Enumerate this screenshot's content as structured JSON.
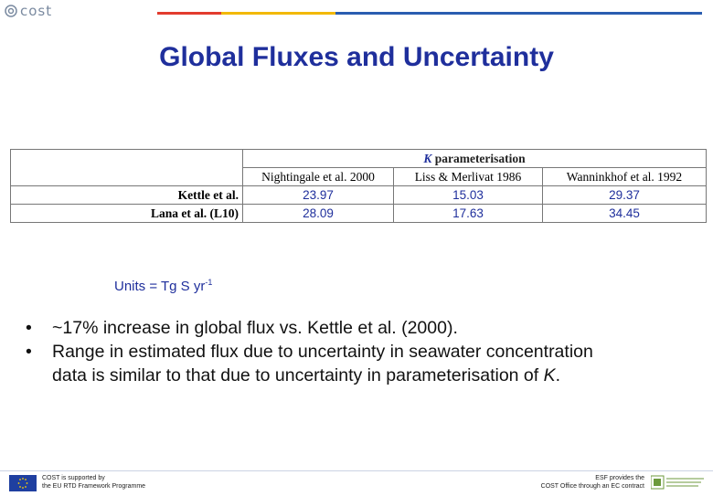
{
  "logo": {
    "text": "cost",
    "icon": "cost-logo-icon"
  },
  "header_bar_colors": [
    "#e23b2e",
    "#f2b800",
    "#2a5db0"
  ],
  "title": "Global Fluxes and Uncertainty",
  "table": {
    "k_header_symbol": "K",
    "k_header_text": " parameterisation",
    "columns": [
      "Nightingale et al. 2000",
      "Liss & Merlivat 1986",
      "Wanninkhof et al. 1992"
    ],
    "rows": [
      {
        "label": "Kettle et al.",
        "values": [
          "23.97",
          "15.03",
          "29.37"
        ]
      },
      {
        "label": "Lana et al. (L10)",
        "values": [
          "28.09",
          "17.63",
          "34.45"
        ]
      }
    ]
  },
  "units": {
    "prefix": "Units = Tg S yr",
    "exponent": "-1"
  },
  "bullets": [
    {
      "text": "~17% increase in global flux vs. Kettle et al. (2000)."
    },
    {
      "text": "Range in estimated flux due to uncertainty in seawater concentration data is similar to that due to uncertainty in parameterisation of ",
      "italic": "K",
      "suffix": "."
    }
  ],
  "footer": {
    "left_line1": "COST is supported by",
    "left_line2": "the EU RTD Framework Programme",
    "right_line1": "ESF provides the",
    "right_line2": "COST Office through an EC contract"
  },
  "colors": {
    "title": "#1f2f9c",
    "values": "#1f2f9c",
    "eu_flag": "#1f3fa0",
    "eu_stars": "#ffd200"
  }
}
